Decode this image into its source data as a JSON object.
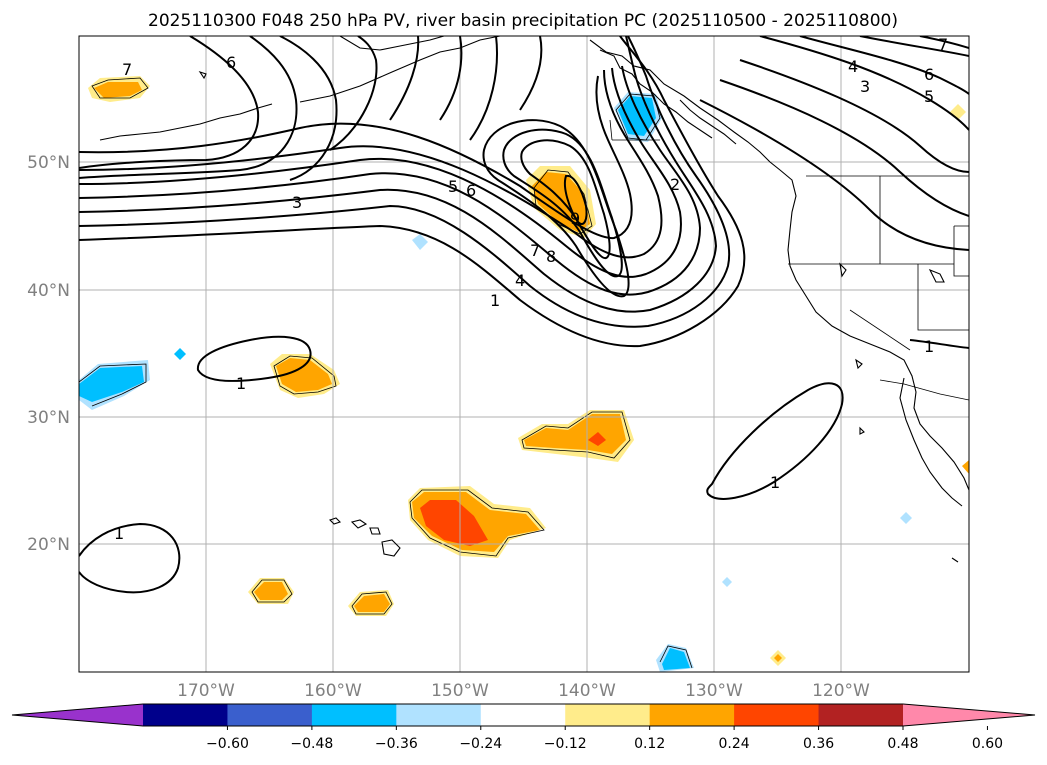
{
  "title": "2025110300 F048 250 hPa PV, river basin precipitation PC (2025110500 - 2025110800)",
  "lat_labels": [
    "50°N",
    "40°N",
    "30°N",
    "20°N"
  ],
  "lon_labels": [
    "170°W",
    "160°W",
    "150°W",
    "140°W",
    "130°W",
    "120°W"
  ],
  "contour_labels": [
    "7",
    "6",
    "3",
    "5",
    "6",
    "2",
    "9",
    "7",
    "8",
    "4",
    "1",
    "1",
    "1",
    "1",
    "1",
    "7",
    "6",
    "4",
    "3",
    "5"
  ],
  "colorbar": {
    "ticks": [
      "−0.60",
      "−0.48",
      "−0.36",
      "−0.24",
      "−0.12",
      "0.12",
      "0.24",
      "0.36",
      "0.48",
      "0.60"
    ],
    "colors": [
      "#9932cc",
      "#00008b",
      "#3a5fcd",
      "#00bfff",
      "#b0e2ff",
      "#ffffff",
      "#ffec8b",
      "#ffa500",
      "#ff4500",
      "#b22222",
      "#ff88aa"
    ]
  },
  "colors": {
    "pos_low": "#ffec8b",
    "pos_mid": "#ffa500",
    "pos_high": "#ff4500",
    "neg_low": "#b0e2ff",
    "neg_mid": "#00bfff"
  }
}
